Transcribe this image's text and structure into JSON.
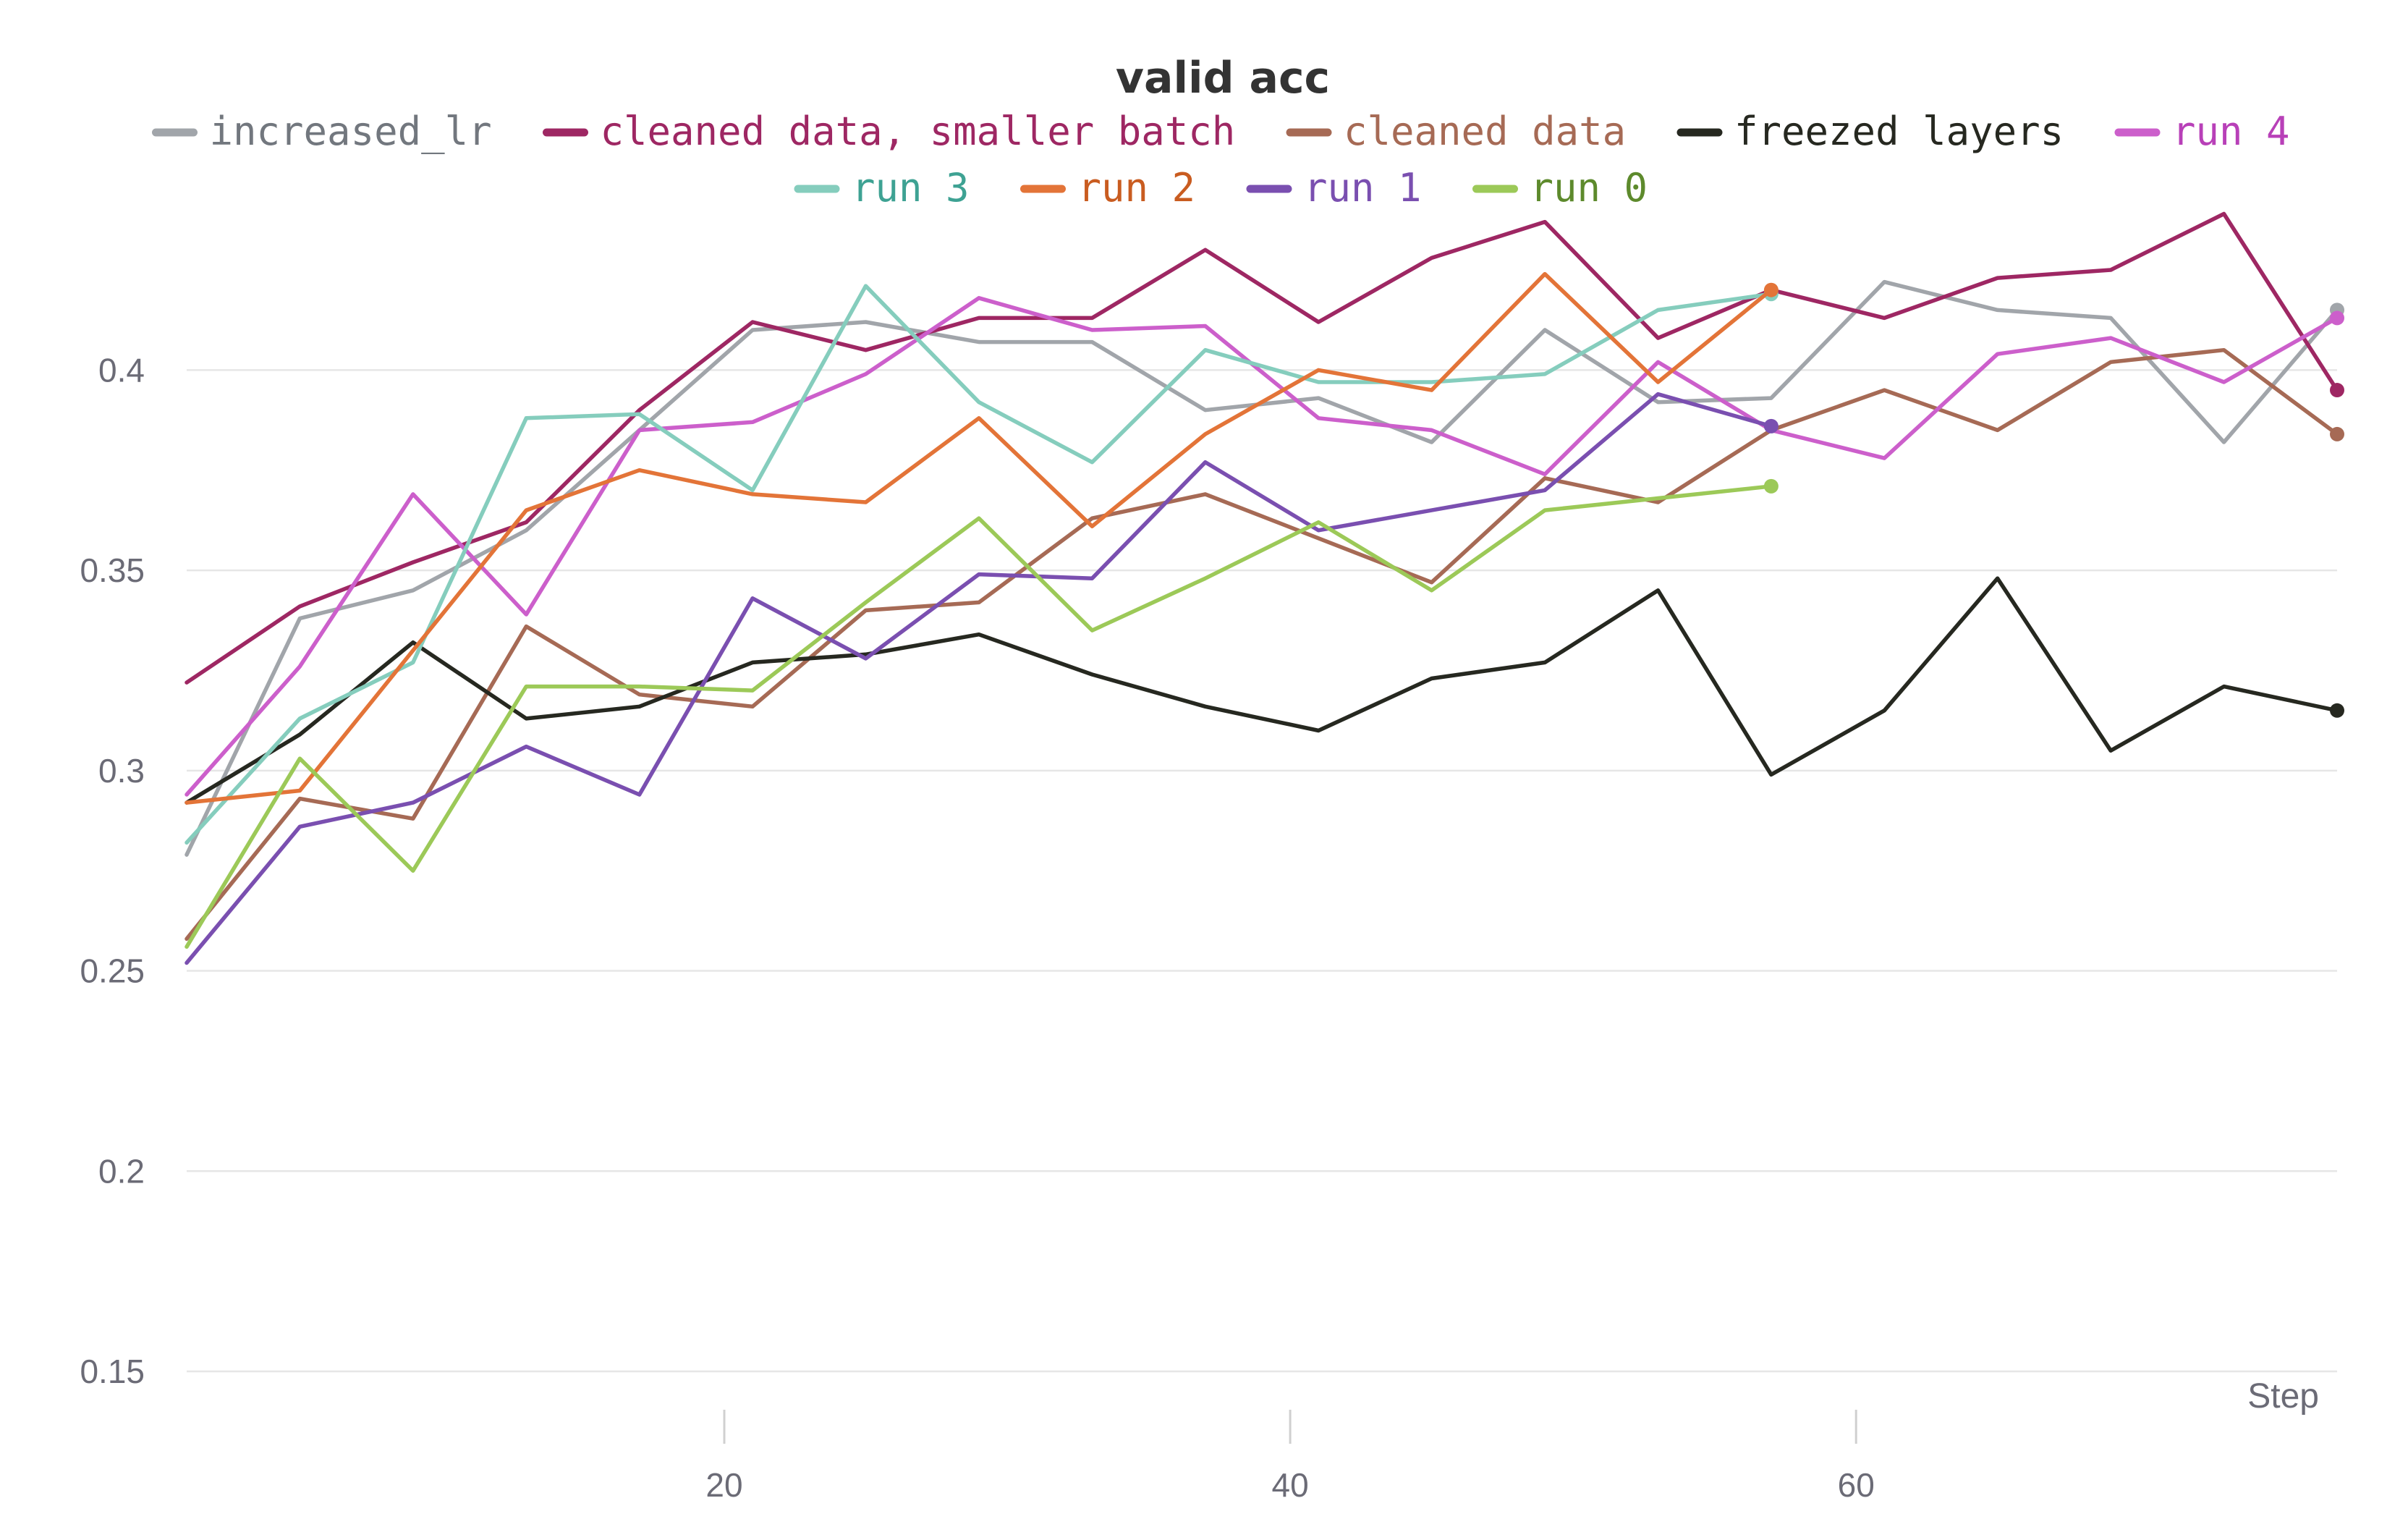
{
  "chart_data": {
    "type": "line",
    "title": "valid acc",
    "xlabel": "Step",
    "ylabel": "",
    "xlim": [
      0,
      78
    ],
    "ylim": [
      0.15,
      0.44
    ],
    "x_ticks": [
      20,
      40,
      60
    ],
    "y_ticks": [
      0.15,
      0.2,
      0.25,
      0.3,
      0.35,
      0.4
    ],
    "grid": true,
    "legend_position": "top-center",
    "series": [
      {
        "name": "increased_lr",
        "color": "#a1a5aa",
        "text_color": "#72777e",
        "x": [
          1,
          5,
          9,
          13,
          17,
          21,
          25,
          29,
          33,
          37,
          41,
          45,
          49,
          53,
          57,
          61,
          65,
          69,
          73,
          77
        ],
        "y": [
          0.279,
          0.338,
          0.345,
          0.36,
          0.385,
          0.41,
          0.412,
          0.407,
          0.407,
          0.39,
          0.393,
          0.382,
          0.41,
          0.392,
          0.393,
          0.422,
          0.415,
          0.413,
          0.382,
          0.415
        ]
      },
      {
        "name": "cleaned data, smaller batch",
        "color": "#9e2763",
        "text_color": "#9e2763",
        "x": [
          1,
          5,
          9,
          13,
          17,
          21,
          25,
          29,
          33,
          37,
          41,
          45,
          49,
          53,
          57,
          61,
          65,
          69,
          73,
          77
        ],
        "y": [
          0.322,
          0.341,
          0.352,
          0.362,
          0.39,
          0.412,
          0.405,
          0.413,
          0.413,
          0.43,
          0.412,
          0.428,
          0.437,
          0.408,
          0.42,
          0.413,
          0.423,
          0.425,
          0.439,
          0.395
        ]
      },
      {
        "name": "cleaned data",
        "color": "#a66a55",
        "text_color": "#a66a55",
        "x": [
          1,
          5,
          9,
          13,
          17,
          21,
          25,
          29,
          33,
          37,
          41,
          45,
          49,
          53,
          57,
          61,
          65,
          69,
          73,
          77
        ],
        "y": [
          0.258,
          0.293,
          0.288,
          0.336,
          0.319,
          0.316,
          0.34,
          0.342,
          0.363,
          0.369,
          0.358,
          0.347,
          0.373,
          0.367,
          0.385,
          0.395,
          0.385,
          0.402,
          0.405,
          0.384
        ]
      },
      {
        "name": "freezed layers",
        "color": "#262820",
        "text_color": "#262820",
        "x": [
          1,
          5,
          9,
          13,
          17,
          21,
          25,
          29,
          33,
          37,
          41,
          45,
          49,
          53,
          57,
          61,
          65,
          69,
          73,
          77
        ],
        "y": [
          0.292,
          0.309,
          0.332,
          0.313,
          0.316,
          0.327,
          0.329,
          0.334,
          0.324,
          0.316,
          0.31,
          0.323,
          0.327,
          0.345,
          0.299,
          0.315,
          0.348,
          0.305,
          0.321,
          0.315
        ]
      },
      {
        "name": "run 4",
        "color": "#cc5fcb",
        "text_color": "#b840b8",
        "x": [
          1,
          5,
          9,
          13,
          17,
          21,
          25,
          29,
          33,
          37,
          41,
          45,
          49,
          53,
          57,
          61,
          65,
          69,
          73,
          77
        ],
        "y": [
          0.294,
          0.326,
          0.369,
          0.339,
          0.385,
          0.387,
          0.399,
          0.418,
          0.41,
          0.411,
          0.388,
          0.385,
          0.374,
          0.402,
          0.385,
          0.378,
          0.404,
          0.408,
          0.397,
          0.413
        ]
      },
      {
        "name": "run 3",
        "color": "#85cdbd",
        "text_color": "#3ea293",
        "x": [
          1,
          5,
          9,
          13,
          17,
          21,
          25,
          29,
          33,
          37,
          41,
          45,
          49,
          53,
          57
        ],
        "y": [
          0.282,
          0.313,
          0.327,
          0.388,
          0.389,
          0.37,
          0.421,
          0.392,
          0.377,
          0.405,
          0.397,
          0.397,
          0.399,
          0.415,
          0.419
        ]
      },
      {
        "name": "run 2",
        "color": "#e37438",
        "text_color": "#c95c20",
        "x": [
          1,
          5,
          9,
          13,
          17,
          21,
          25,
          29,
          33,
          37,
          41,
          45,
          49,
          53,
          57
        ],
        "y": [
          0.292,
          0.295,
          0.33,
          0.365,
          0.375,
          0.369,
          0.367,
          0.388,
          0.361,
          0.384,
          0.4,
          0.395,
          0.424,
          0.397,
          0.42
        ]
      },
      {
        "name": "run 1",
        "color": "#7a4fb0",
        "text_color": "#7a4fb0",
        "x": [
          1,
          5,
          9,
          13,
          17,
          21,
          25,
          29,
          33,
          37,
          41,
          45,
          49,
          53,
          57
        ],
        "y": [
          0.252,
          0.286,
          0.292,
          0.306,
          0.294,
          0.343,
          0.328,
          0.349,
          0.348,
          0.377,
          0.36,
          0.365,
          0.37,
          0.394,
          0.386
        ]
      },
      {
        "name": "run 0",
        "color": "#9cc958",
        "text_color": "#5d8a2c",
        "x": [
          1,
          5,
          9,
          13,
          17,
          21,
          25,
          29,
          33,
          37,
          41,
          45,
          49,
          53,
          57
        ],
        "y": [
          0.256,
          0.303,
          0.275,
          0.321,
          0.321,
          0.32,
          0.342,
          0.363,
          0.335,
          0.348,
          0.362,
          0.345,
          0.365,
          0.368,
          0.371
        ]
      }
    ]
  }
}
